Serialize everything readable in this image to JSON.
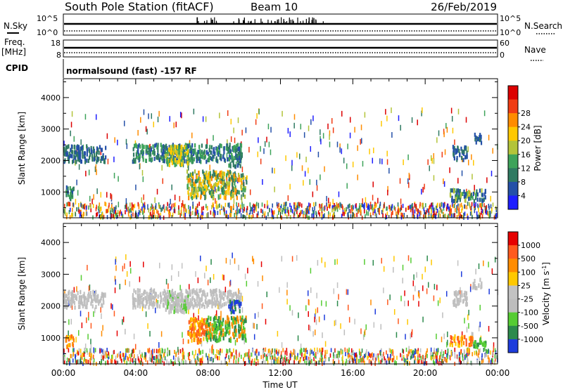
{
  "header": {
    "station_title": "South Pole Station (fitACF)",
    "beam": "Beam 10",
    "date": "26/Feb/2019"
  },
  "top_panels": {
    "nsky_label": "N.Sky",
    "nsky_top_tick": "10^5",
    "nsky_bottom_tick": "10^0",
    "nsearch_label": "N.Search",
    "nsearch_top_tick": "10^5",
    "nsearch_bottom_tick": "10^0",
    "freq_label": "Freq.",
    "freq_unit": "[MHz]",
    "freq_top_tick": "18",
    "freq_bottom_tick": "8",
    "nave_label": "Nave",
    "nave_top_tick": "60",
    "nave_bottom_tick": "0",
    "cpid_label": "CPID",
    "cpid_text": "normalsound (fast) -157 RF"
  },
  "chart_data": [
    {
      "type": "heatmap",
      "title": "Power",
      "xlabel": "Time UT",
      "ylabel": "Slant Range [km]",
      "colorbar_label": "Power [dB]",
      "xticks": [
        "00:00",
        "04:00",
        "08:00",
        "12:00",
        "16:00",
        "20:00",
        "00:00"
      ],
      "xlim_hours": [
        0,
        24
      ],
      "yticks": [
        1000,
        2000,
        3000,
        4000
      ],
      "ylim": [
        180,
        4600
      ],
      "colorbar_ticks": [
        "4",
        "8",
        "12",
        "16",
        "20",
        "24",
        "28"
      ],
      "colors": [
        "#1e1eff",
        "#2450a8",
        "#2f7a62",
        "#3ea35a",
        "#b3c43a",
        "#ffc800",
        "#ff8c00",
        "#f03c14",
        "#dc0000"
      ],
      "regions": [
        {
          "t0": 0.0,
          "t1": 2.3,
          "r0": 1950,
          "r1": 2450,
          "c": [
            1,
            2
          ]
        },
        {
          "t0": 0.1,
          "t1": 0.6,
          "r0": 750,
          "r1": 1150,
          "c": [
            1,
            2,
            3
          ]
        },
        {
          "t0": 3.8,
          "t1": 9.8,
          "r0": 1950,
          "r1": 2500,
          "c": [
            1,
            2,
            3
          ]
        },
        {
          "t0": 5.6,
          "t1": 6.9,
          "r0": 1850,
          "r1": 2450,
          "c": [
            3,
            4,
            5
          ]
        },
        {
          "t0": 6.8,
          "t1": 10.1,
          "r0": 800,
          "r1": 1650,
          "c": [
            2,
            3,
            4,
            5,
            6
          ]
        },
        {
          "t0": 9.1,
          "t1": 9.8,
          "r0": 1800,
          "r1": 2150,
          "c": [
            1,
            2,
            3
          ]
        },
        {
          "t0": 21.3,
          "t1": 23.3,
          "r0": 700,
          "r1": 1050,
          "c": [
            1,
            2,
            3,
            4
          ]
        },
        {
          "t0": 21.5,
          "t1": 22.3,
          "r0": 2000,
          "r1": 2450,
          "c": [
            1,
            2
          ]
        },
        {
          "t0": 22.6,
          "t1": 23.1,
          "r0": 2550,
          "r1": 2850,
          "c": [
            1,
            2
          ]
        }
      ]
    },
    {
      "type": "heatmap",
      "title": "Velocity",
      "xlabel": "Time UT",
      "ylabel": "Slant Range [km]",
      "colorbar_label": "Velocity [m s^-1]",
      "xticks": [
        "00:00",
        "04:00",
        "08:00",
        "12:00",
        "16:00",
        "20:00",
        "00:00"
      ],
      "xlim_hours": [
        0,
        24
      ],
      "yticks": [
        1000,
        2000,
        3000,
        4000
      ],
      "ylim": [
        180,
        4600
      ],
      "colorbar_ticks": [
        "1000",
        "500",
        "100",
        "25",
        "-25",
        "-100",
        "-500",
        "-1000"
      ],
      "colors": [
        "#1e3cdc",
        "#2c8a4c",
        "#55cc33",
        "#bdbdbd",
        "#c2c2c2",
        "#ffc800",
        "#ff8c00",
        "#ff5a1e",
        "#e60000"
      ],
      "regions": [
        {
          "t0": 0.0,
          "t1": 2.3,
          "r0": 1950,
          "r1": 2450,
          "c": [
            3,
            4
          ]
        },
        {
          "t0": 0.1,
          "t1": 0.6,
          "r0": 700,
          "r1": 1050,
          "c": [
            5,
            6,
            7
          ]
        },
        {
          "t0": 3.8,
          "t1": 9.8,
          "r0": 1950,
          "r1": 2500,
          "c": [
            3,
            4
          ]
        },
        {
          "t0": 5.6,
          "t1": 6.9,
          "r0": 1800,
          "r1": 2450,
          "c": [
            3,
            4,
            2
          ]
        },
        {
          "t0": 6.8,
          "t1": 7.9,
          "r0": 850,
          "r1": 1600,
          "c": [
            6,
            5,
            7
          ]
        },
        {
          "t0": 7.8,
          "t1": 10.1,
          "r0": 900,
          "r1": 1650,
          "c": [
            1,
            2,
            6
          ]
        },
        {
          "t0": 9.1,
          "t1": 9.8,
          "r0": 1800,
          "r1": 2150,
          "c": [
            0,
            1
          ]
        },
        {
          "t0": 21.3,
          "t1": 22.6,
          "r0": 750,
          "r1": 1050,
          "c": [
            6,
            7,
            5
          ]
        },
        {
          "t0": 22.6,
          "t1": 23.4,
          "r0": 700,
          "r1": 950,
          "c": [
            1,
            2
          ]
        },
        {
          "t0": 21.5,
          "t1": 22.3,
          "r0": 2000,
          "r1": 2450,
          "c": [
            3,
            4
          ]
        },
        {
          "t0": 22.6,
          "t1": 23.1,
          "r0": 2550,
          "r1": 2850,
          "c": [
            3,
            4
          ]
        }
      ]
    }
  ]
}
